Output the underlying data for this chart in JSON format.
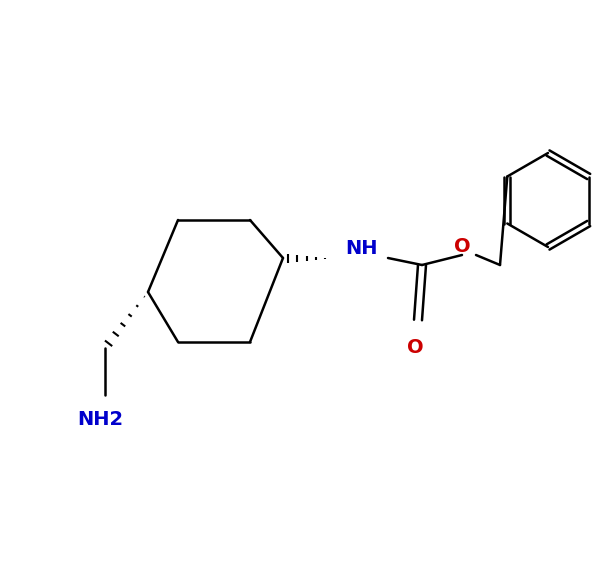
{
  "background_color": "#ffffff",
  "bond_color": "#000000",
  "nitrogen_color": "#0000cc",
  "oxygen_color": "#cc0000",
  "figsize": [
    6.16,
    5.63
  ],
  "dpi": 100,
  "NH_label": "NH",
  "NH2_label": "NH2",
  "O_ether_label": "O",
  "O_carbonyl_label": "O",
  "lw": 1.8,
  "fs": 14
}
